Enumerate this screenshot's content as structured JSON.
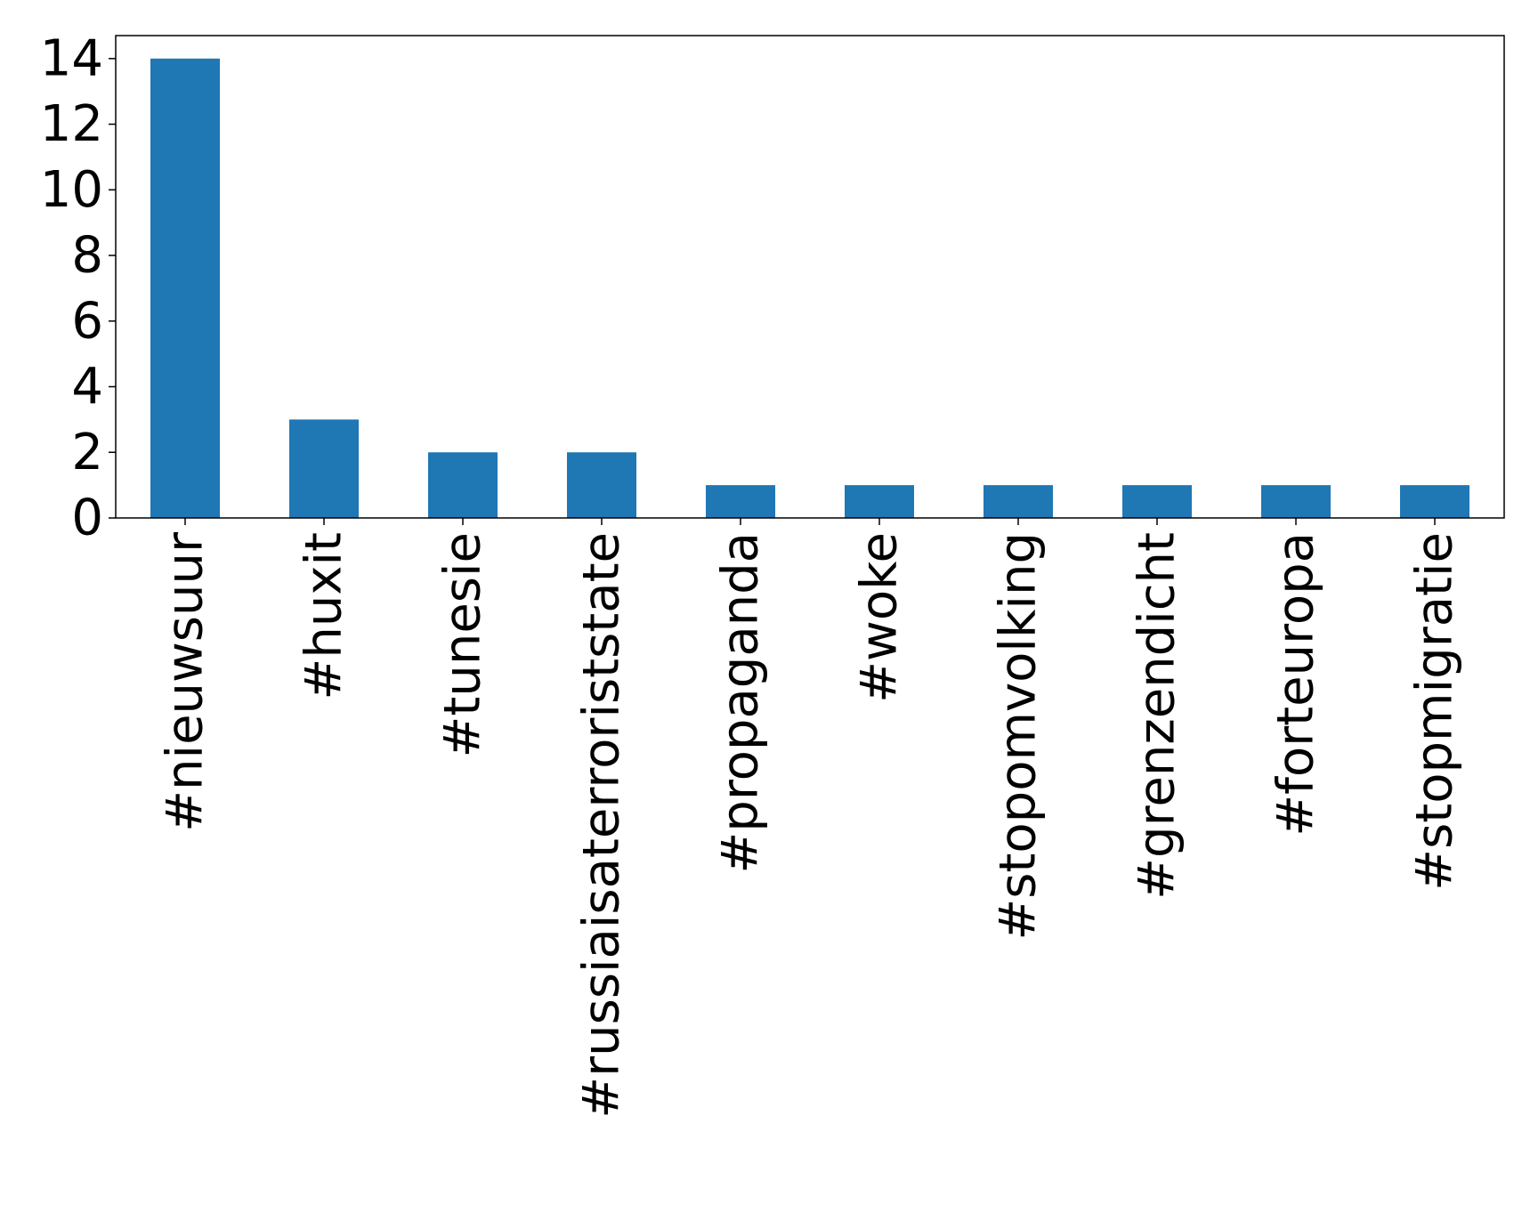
{
  "chart_data": {
    "type": "bar",
    "title": "",
    "xlabel": "",
    "ylabel": "",
    "categories": [
      "#nieuwsuur",
      "#huxit",
      "#tunesie",
      "#russiaisaterroriststate",
      "#propaganda",
      "#woke",
      "#stopomvolking",
      "#grenzendicht",
      "#forteuropa",
      "#stopmigratie"
    ],
    "values": [
      14,
      3,
      2,
      2,
      1,
      1,
      1,
      1,
      1,
      1
    ],
    "ylim": [
      0,
      14.7
    ],
    "yticks": [
      "0",
      "2",
      "4",
      "6",
      "8",
      "10",
      "12",
      "14"
    ],
    "grid": false,
    "legend": "none",
    "bar_color": "#1f77b4"
  }
}
